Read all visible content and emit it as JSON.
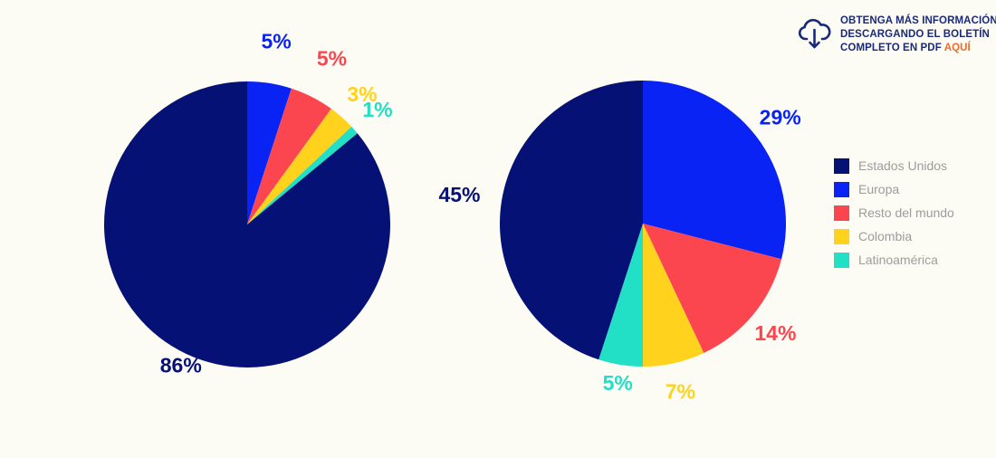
{
  "colors": {
    "background": "#fdfcf4",
    "cta_text": "#1a2a7a",
    "cta_link": "#f06a2a",
    "legend_text": "#9c9c9c"
  },
  "cta": {
    "icon": "cloud-download-icon",
    "line1": "OBTENGA MÁS INFORMACIÓN",
    "line2": "DESCARGANDO EL BOLETÍN",
    "line3_prefix": "COMPLETO EN PDF ",
    "line3_link": "AQUÍ"
  },
  "legend": [
    {
      "label": "Estados Unidos",
      "color": "#061175"
    },
    {
      "label": "Europa",
      "color": "#0a23f5"
    },
    {
      "label": "Resto del mundo",
      "color": "#fb4650"
    },
    {
      "label": "Colombia",
      "color": "#ffd21e"
    },
    {
      "label": "Latinoamérica",
      "color": "#22e0c5"
    }
  ],
  "chart_data": [
    {
      "type": "pie",
      "title": "",
      "slices": [
        {
          "name": "Europa",
          "value": 5,
          "label": "5%",
          "color": "#0a23f5"
        },
        {
          "name": "Resto del mundo",
          "value": 5,
          "label": "5%",
          "color": "#fb4650"
        },
        {
          "name": "Colombia",
          "value": 3,
          "label": "3%",
          "color": "#ffd21e"
        },
        {
          "name": "Latinoamérica",
          "value": 1,
          "label": "1%",
          "color": "#22e0c5"
        },
        {
          "name": "Estados Unidos",
          "value": 86,
          "label": "86%",
          "color": "#061175"
        }
      ]
    },
    {
      "type": "pie",
      "title": "",
      "slices": [
        {
          "name": "Europa",
          "value": 29,
          "label": "29%",
          "color": "#0a23f5"
        },
        {
          "name": "Resto del mundo",
          "value": 14,
          "label": "14%",
          "color": "#fb4650"
        },
        {
          "name": "Colombia",
          "value": 7,
          "label": "7%",
          "color": "#ffd21e"
        },
        {
          "name": "Latinoamérica",
          "value": 5,
          "label": "5%",
          "color": "#22e0c5"
        },
        {
          "name": "Estados Unidos",
          "value": 45,
          "label": "45%",
          "color": "#061175"
        }
      ]
    }
  ]
}
